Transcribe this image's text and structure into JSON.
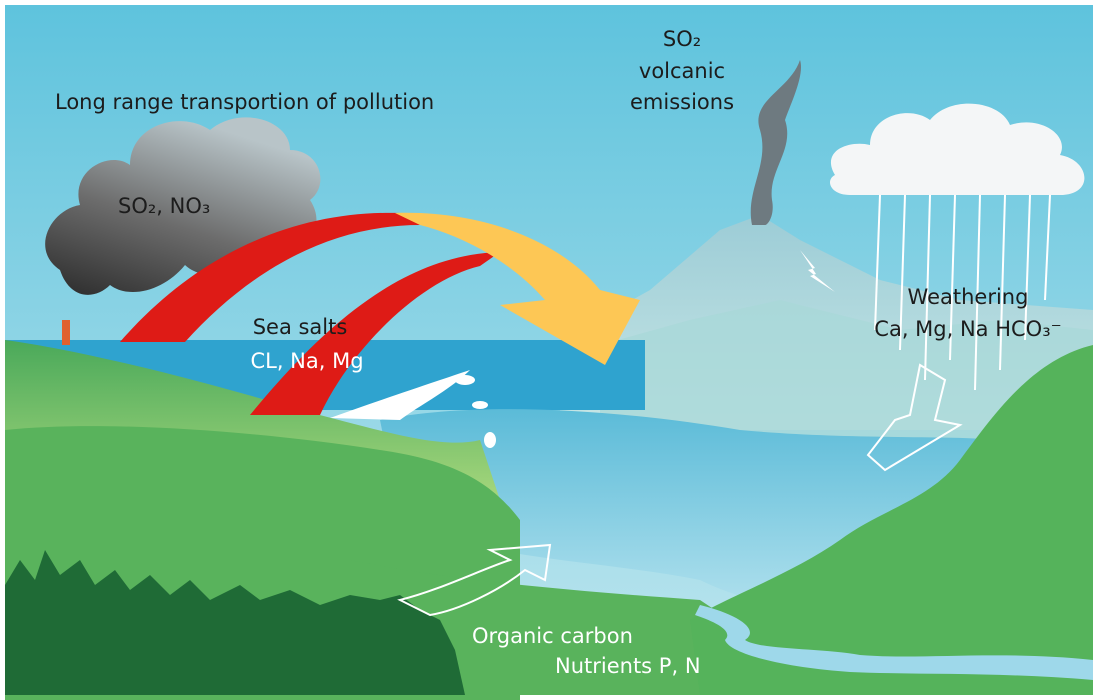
{
  "labels": {
    "transport": "Long range transportion of pollution",
    "pollutants": "SO₂, NO₃",
    "volcano": [
      "SO₂",
      "volcanic",
      "emissions"
    ],
    "weathering": [
      "Weathering",
      "Ca, Mg, Na HCO₃⁻"
    ],
    "sea_salts": [
      "Sea salts",
      "CL, Na, Mg"
    ],
    "runoff": [
      "Organic carbon",
      "Nutrients P, N"
    ]
  }
}
